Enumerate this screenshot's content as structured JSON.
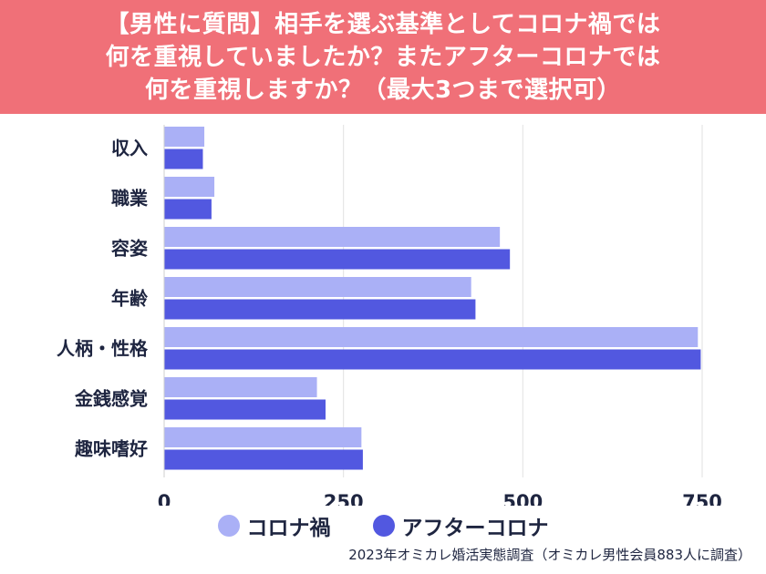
{
  "header": {
    "title": "【男性に質問】相手を選ぶ基準としてコロナ禍では\n何を重視していましたか？またアフターコロナでは\n何を重視しますか？（最大3つまで選択可）"
  },
  "chart_data": {
    "type": "bar",
    "orientation": "horizontal",
    "categories": [
      "収入",
      "職業",
      "容姿",
      "年齢",
      "人柄・性格",
      "金銭感覚",
      "趣味嗜好"
    ],
    "series": [
      {
        "name": "コロナ禍",
        "color": "#aab0f6",
        "values": [
          56,
          70,
          468,
          428,
          744,
          213,
          275
        ]
      },
      {
        "name": "アフターコロナ",
        "color": "#5258e0",
        "values": [
          54,
          66,
          482,
          434,
          748,
          225,
          277
        ]
      }
    ],
    "xlim": [
      0,
      750
    ],
    "xticks": [
      0,
      250,
      500,
      750
    ],
    "xtick_labels": [
      "0",
      "250",
      "500",
      "750"
    ],
    "grid": true,
    "legend_position": "bottom"
  },
  "source": "2023年オミカレ婚活実態調査（オミカレ男性会員883人に調査）"
}
